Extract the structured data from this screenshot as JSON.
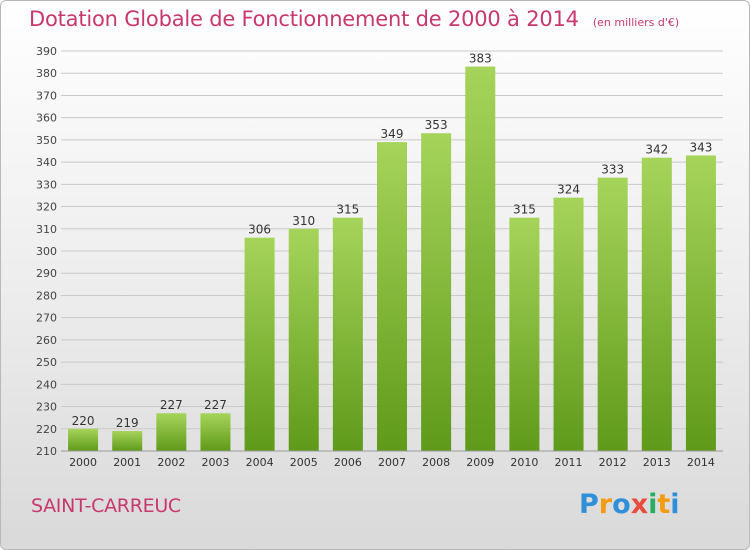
{
  "title": "Dotation Globale de Fonctionnement de 2000 à 2014",
  "unit": "(en milliers d'€)",
  "commune": "SAINT-CARREUC",
  "logo": {
    "letters": [
      "P",
      "r",
      "o",
      "x",
      "i",
      "t",
      "i"
    ],
    "colors": [
      "#2f8fd8",
      "#f39c12",
      "#2f8fd8",
      "#e74c3c",
      "#27ae60",
      "#f39c12",
      "#2f8fd8"
    ]
  },
  "chart_data": {
    "type": "bar",
    "categories": [
      "2000",
      "2001",
      "2002",
      "2003",
      "2004",
      "2005",
      "2006",
      "2007",
      "2008",
      "2009",
      "2010",
      "2011",
      "2012",
      "2013",
      "2014"
    ],
    "values": [
      220,
      219,
      227,
      227,
      306,
      310,
      315,
      349,
      353,
      383,
      315,
      324,
      333,
      342,
      343
    ],
    "ylim": [
      210,
      390
    ],
    "yticks": [
      210,
      220,
      230,
      240,
      250,
      260,
      270,
      280,
      290,
      300,
      310,
      320,
      330,
      340,
      350,
      360,
      370,
      380,
      390
    ],
    "grid": true,
    "bar_color_top": "#a6d45a",
    "bar_color_bottom": "#5f9a1a",
    "grid_color": "#c9c9c9"
  }
}
